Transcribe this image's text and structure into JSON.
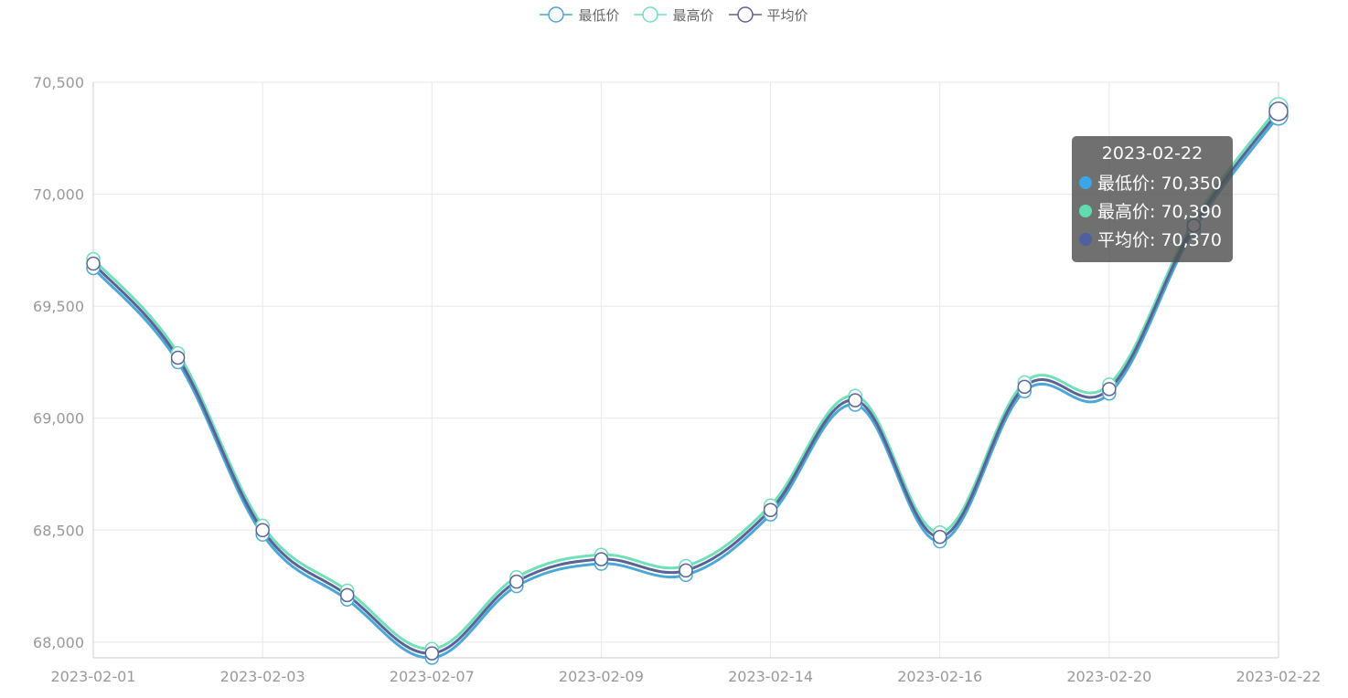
{
  "legend": [
    {
      "name": "最低价",
      "color": "#4aa8d8"
    },
    {
      "name": "最高价",
      "color": "#6fe0b8"
    },
    {
      "name": "平均价",
      "color": "#5b6296"
    }
  ],
  "tooltip": {
    "title": "2023-02-22",
    "rows": [
      {
        "label": "最低价: 70,350",
        "color": "#3ca5e6"
      },
      {
        "label": "最高价: 70,390",
        "color": "#5fdcb0"
      },
      {
        "label": "平均价: 70,370",
        "color": "#4f5fa0"
      }
    ]
  },
  "chart_data": {
    "type": "line",
    "x": [
      "2023-02-01",
      "2023-02-02",
      "2023-02-03",
      "2023-02-06",
      "2023-02-07",
      "2023-02-08",
      "2023-02-09",
      "2023-02-13",
      "2023-02-14",
      "2023-02-15",
      "2023-02-16",
      "2023-02-17",
      "2023-02-20",
      "2023-02-21",
      "2023-02-22"
    ],
    "x_tick_labels": [
      "2023-02-01",
      "2023-02-03",
      "2023-02-07",
      "2023-02-09",
      "2023-02-14",
      "2023-02-16",
      "2023-02-20",
      "2023-02-22"
    ],
    "ylim": [
      67930,
      70500
    ],
    "y_ticks": [
      "68,000",
      "68,500",
      "69,000",
      "69,500",
      "70,000",
      "70,500"
    ],
    "y_tick_values": [
      68000,
      68500,
      69000,
      69500,
      70000,
      70500
    ],
    "series": [
      {
        "name": "最低价",
        "color": "#4aa8d8",
        "values": [
          69670,
          69250,
          68480,
          68190,
          67930,
          68250,
          68350,
          68300,
          68570,
          69060,
          68450,
          69120,
          69110,
          69840,
          70350
        ]
      },
      {
        "name": "最高价",
        "color": "#6fe0b8",
        "values": [
          69710,
          69290,
          68520,
          68230,
          67970,
          68290,
          68390,
          68340,
          68610,
          69100,
          68490,
          69160,
          69150,
          69880,
          70390
        ]
      },
      {
        "name": "平均价",
        "color": "#5b6296",
        "values": [
          69690,
          69270,
          68500,
          68210,
          67950,
          68270,
          68370,
          68320,
          68590,
          69080,
          68470,
          69140,
          69130,
          69860,
          70370
        ]
      }
    ]
  }
}
